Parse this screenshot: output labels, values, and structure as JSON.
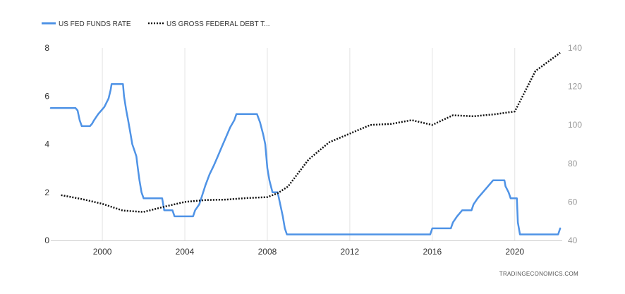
{
  "chart_data": {
    "type": "line",
    "title": "",
    "xlabel": "",
    "ylabel": "",
    "xlim": [
      1997.5,
      2022.3
    ],
    "ylim_left": [
      0,
      8
    ],
    "ylim_right": [
      40,
      140
    ],
    "x_ticks": [
      "2000",
      "2004",
      "2008",
      "2012",
      "2016",
      "2020"
    ],
    "y_ticks_left": [
      "0",
      "2",
      "4",
      "6",
      "8"
    ],
    "y_ticks_right": [
      "40",
      "60",
      "80",
      "100",
      "120",
      "140"
    ],
    "grid": "vertical",
    "legend_position": "top-left",
    "source": "TRADINGECONOMICS.COM",
    "series": [
      {
        "name": "US FED FUNDS RATE",
        "axis": "left",
        "style": "solid",
        "color": "#4f93e6",
        "points": [
          [
            1997.5,
            5.5
          ],
          [
            1998.7,
            5.5
          ],
          [
            1998.8,
            5.4
          ],
          [
            1998.9,
            5.0
          ],
          [
            1999.0,
            4.75
          ],
          [
            1999.4,
            4.75
          ],
          [
            1999.5,
            4.85
          ],
          [
            1999.6,
            5.0
          ],
          [
            1999.8,
            5.25
          ],
          [
            2000.0,
            5.45
          ],
          [
            2000.1,
            5.55
          ],
          [
            2000.3,
            5.9
          ],
          [
            2000.4,
            6.25
          ],
          [
            2000.45,
            6.5
          ],
          [
            2001.0,
            6.5
          ],
          [
            2001.05,
            6.0
          ],
          [
            2001.15,
            5.45
          ],
          [
            2001.25,
            5.0
          ],
          [
            2001.35,
            4.5
          ],
          [
            2001.45,
            4.0
          ],
          [
            2001.55,
            3.75
          ],
          [
            2001.65,
            3.5
          ],
          [
            2001.72,
            3.0
          ],
          [
            2001.8,
            2.5
          ],
          [
            2001.9,
            2.0
          ],
          [
            2002.0,
            1.75
          ],
          [
            2002.9,
            1.75
          ],
          [
            2003.0,
            1.25
          ],
          [
            2003.4,
            1.25
          ],
          [
            2003.5,
            1.0
          ],
          [
            2004.4,
            1.0
          ],
          [
            2004.5,
            1.25
          ],
          [
            2004.7,
            1.5
          ],
          [
            2004.85,
            1.9
          ],
          [
            2005.0,
            2.3
          ],
          [
            2005.2,
            2.75
          ],
          [
            2005.4,
            3.1
          ],
          [
            2005.6,
            3.5
          ],
          [
            2005.8,
            3.9
          ],
          [
            2006.0,
            4.3
          ],
          [
            2006.2,
            4.7
          ],
          [
            2006.4,
            5.0
          ],
          [
            2006.5,
            5.25
          ],
          [
            2007.5,
            5.25
          ],
          [
            2007.65,
            4.9
          ],
          [
            2007.8,
            4.4
          ],
          [
            2007.9,
            4.0
          ],
          [
            2008.0,
            3.0
          ],
          [
            2008.1,
            2.5
          ],
          [
            2008.25,
            2.0
          ],
          [
            2008.5,
            2.0
          ],
          [
            2008.75,
            1.0
          ],
          [
            2008.85,
            0.5
          ],
          [
            2008.95,
            0.25
          ],
          [
            2015.9,
            0.25
          ],
          [
            2016.0,
            0.5
          ],
          [
            2016.9,
            0.5
          ],
          [
            2017.0,
            0.75
          ],
          [
            2017.2,
            1.0
          ],
          [
            2017.45,
            1.25
          ],
          [
            2017.9,
            1.25
          ],
          [
            2018.0,
            1.5
          ],
          [
            2018.2,
            1.75
          ],
          [
            2018.45,
            2.0
          ],
          [
            2018.7,
            2.25
          ],
          [
            2018.95,
            2.5
          ],
          [
            2019.5,
            2.5
          ],
          [
            2019.55,
            2.25
          ],
          [
            2019.7,
            2.0
          ],
          [
            2019.8,
            1.75
          ],
          [
            2020.1,
            1.75
          ],
          [
            2020.15,
            0.75
          ],
          [
            2020.25,
            0.25
          ],
          [
            2022.1,
            0.25
          ],
          [
            2022.2,
            0.5
          ]
        ]
      },
      {
        "name": "US GROSS FEDERAL DEBT T...",
        "axis": "right",
        "style": "dotted",
        "color": "#111111",
        "points": [
          [
            1998.0,
            63.5
          ],
          [
            1999.0,
            61.5
          ],
          [
            2000.0,
            59.0
          ],
          [
            2001.0,
            55.5
          ],
          [
            2002.0,
            54.8
          ],
          [
            2003.0,
            57.5
          ],
          [
            2004.0,
            60.0
          ],
          [
            2005.0,
            61.0
          ],
          [
            2006.0,
            61.2
          ],
          [
            2007.0,
            62.0
          ],
          [
            2008.0,
            62.5
          ],
          [
            2008.5,
            64.5
          ],
          [
            2009.0,
            68.0
          ],
          [
            2010.0,
            82.0
          ],
          [
            2011.0,
            91.0
          ],
          [
            2012.0,
            95.5
          ],
          [
            2013.0,
            100.0
          ],
          [
            2014.0,
            100.5
          ],
          [
            2015.0,
            102.5
          ],
          [
            2016.0,
            100.0
          ],
          [
            2017.0,
            105.0
          ],
          [
            2018.0,
            104.5
          ],
          [
            2019.0,
            105.5
          ],
          [
            2020.0,
            107.0
          ],
          [
            2021.0,
            128.0
          ],
          [
            2022.2,
            137.5
          ]
        ]
      }
    ]
  }
}
